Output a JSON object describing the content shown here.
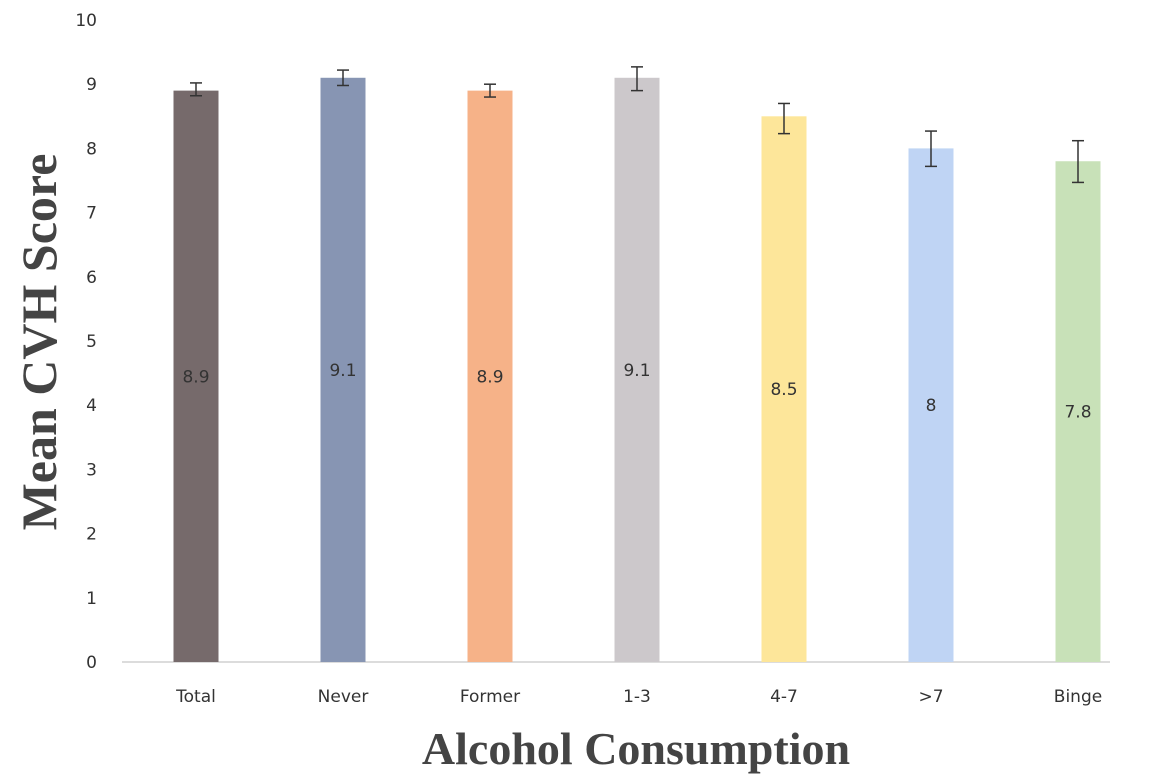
{
  "chart_data": {
    "type": "bar",
    "title": "",
    "xlabel": "Alcohol Consumption",
    "ylabel": "Mean CVH Score",
    "categories": [
      "Total",
      "Never",
      "Former",
      "1-3",
      "4-7",
      ">7",
      "Binge"
    ],
    "values": [
      8.9,
      9.1,
      8.9,
      9.1,
      8.5,
      8,
      7.8
    ],
    "data_labels": [
      "8.9",
      "9.1",
      "8.9",
      "9.1",
      "8.5",
      "8",
      "7.8"
    ],
    "error_low": [
      8.82,
      8.98,
      8.8,
      8.9,
      8.23,
      7.72,
      7.47
    ],
    "error_high": [
      9.02,
      9.22,
      9.0,
      9.27,
      8.7,
      8.27,
      8.12
    ],
    "colors": [
      "#766a6b",
      "#8795b3",
      "#f6b288",
      "#ccc8cb",
      "#fde69a",
      "#bfd4f4",
      "#c8e1b8"
    ],
    "ylim": [
      0,
      10
    ],
    "yticks": [
      "0",
      "1",
      "2",
      "3",
      "4",
      "5",
      "6",
      "7",
      "8",
      "9",
      "10"
    ],
    "grid": false,
    "legend": "none"
  }
}
